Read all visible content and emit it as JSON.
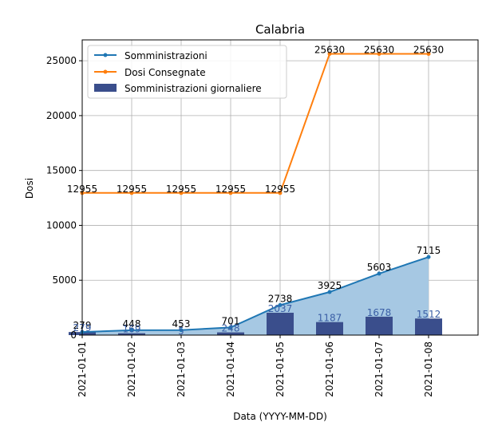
{
  "chart_data": {
    "type": "line",
    "title": "Calabria",
    "xlabel": "Data (YYYY-MM-DD)",
    "ylabel": "Dosi",
    "categories": [
      "2021-01-01",
      "2021-01-02",
      "2021-01-03",
      "2021-01-04",
      "2021-01-05",
      "2021-01-06",
      "2021-01-07",
      "2021-01-08"
    ],
    "ylim": [
      0,
      26900
    ],
    "yticks": [
      0,
      5000,
      10000,
      15000,
      20000,
      25000
    ],
    "grid": true,
    "legend_position": "top-left",
    "series": [
      {
        "name": "Somministrazioni",
        "kind": "line",
        "color": "#1f77b4",
        "values": [
          279,
          448,
          453,
          701,
          2738,
          3925,
          5603,
          7115
        ],
        "area_fill": "#a6c8e3"
      },
      {
        "name": "Dosi Consegnate",
        "kind": "line",
        "color": "#ff7f0e",
        "values": [
          12955,
          12955,
          12955,
          12955,
          12955,
          25630,
          25630,
          25630
        ]
      },
      {
        "name": "Somministrazioni giornaliere",
        "kind": "bar",
        "color": "#3a4e8c",
        "label_color": "#3b5fa6",
        "values": [
          279,
          169,
          5,
          248,
          2037,
          1187,
          1678,
          1512
        ]
      }
    ]
  }
}
